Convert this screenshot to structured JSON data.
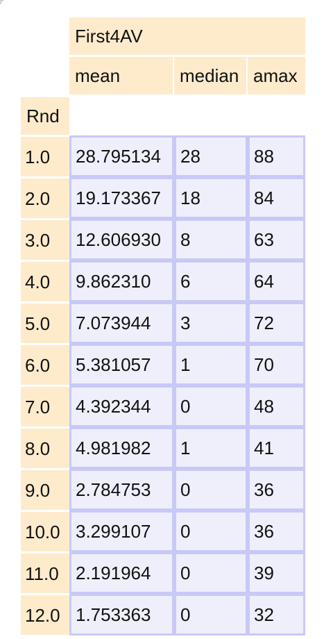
{
  "table": {
    "group_header": "First4AV",
    "columns": [
      "mean",
      "median",
      "amax"
    ],
    "index_name": "Rnd",
    "rows": [
      {
        "rnd": "1.0",
        "mean": "28.795134",
        "median": "28",
        "amax": "88"
      },
      {
        "rnd": "2.0",
        "mean": "19.173367",
        "median": "18",
        "amax": "84"
      },
      {
        "rnd": "3.0",
        "mean": "12.606930",
        "median": "8",
        "amax": "63"
      },
      {
        "rnd": "4.0",
        "mean": "9.862310",
        "median": "6",
        "amax": "64"
      },
      {
        "rnd": "5.0",
        "mean": "7.073944",
        "median": "3",
        "amax": "72"
      },
      {
        "rnd": "6.0",
        "mean": "5.381057",
        "median": "1",
        "amax": "70"
      },
      {
        "rnd": "7.0",
        "mean": "4.392344",
        "median": "0",
        "amax": "48"
      },
      {
        "rnd": "8.0",
        "mean": "4.981982",
        "median": "1",
        "amax": "41"
      },
      {
        "rnd": "9.0",
        "mean": "2.784753",
        "median": "0",
        "amax": "36"
      },
      {
        "rnd": "10.0",
        "mean": "3.299107",
        "median": "0",
        "amax": "36"
      },
      {
        "rnd": "11.0",
        "mean": "2.191964",
        "median": "0",
        "amax": "39"
      },
      {
        "rnd": "12.0",
        "mean": "1.753363",
        "median": "0",
        "amax": "32"
      }
    ]
  },
  "colors": {
    "header_bg": "#fdebcc",
    "cell_bg": "#efeffc",
    "cell_border": "#c9c9f6"
  }
}
